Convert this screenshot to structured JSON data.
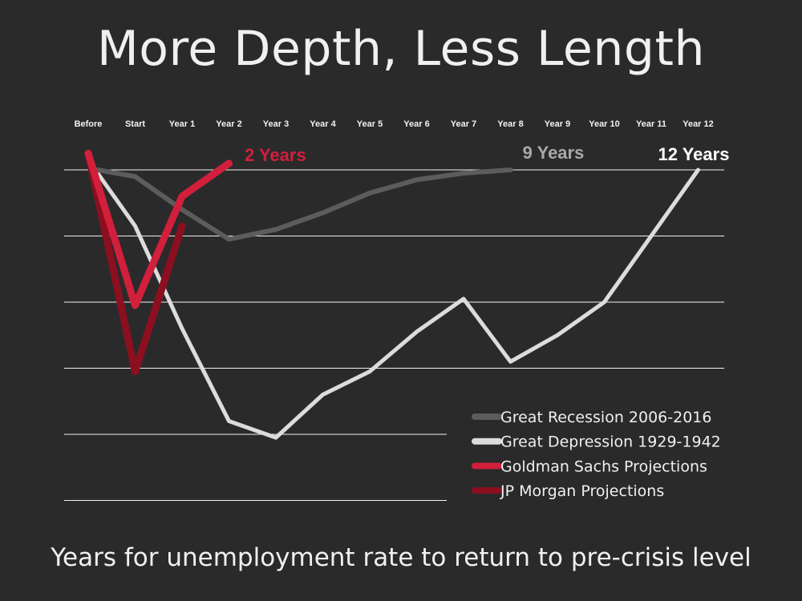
{
  "title": "More Depth, Less Length",
  "caption": "Years for unemployment rate to return to pre-crisis level",
  "chart_data": {
    "type": "line",
    "x_categories": [
      "Before",
      "Start",
      "Year 1",
      "Year 2",
      "Year 3",
      "Year 4",
      "Year 5",
      "Year 6",
      "Year 7",
      "Year 8",
      "Year 9",
      "Year 10",
      "Year 11",
      "Year 12"
    ],
    "ylim": [
      -5,
      0
    ],
    "grid": true,
    "legend_position": "bottom-right",
    "series": [
      {
        "name": "Great Recession 2006-2016",
        "color": "#5c5c5c",
        "points": [
          [
            0.2,
            0
          ],
          [
            1,
            -0.1
          ],
          [
            2,
            -0.6
          ],
          [
            3,
            -1.05
          ],
          [
            4,
            -0.9
          ],
          [
            5,
            -0.65
          ],
          [
            6,
            -0.35
          ],
          [
            7,
            -0.15
          ],
          [
            8,
            -0.05
          ],
          [
            9,
            0
          ]
        ]
      },
      {
        "name": "Great Depression 1929-1942",
        "color": "#dcdcdc",
        "points": [
          [
            0,
            0.15
          ],
          [
            1,
            -0.85
          ],
          [
            2,
            -2.4
          ],
          [
            3,
            -3.8
          ],
          [
            4,
            -4.05
          ],
          [
            5,
            -3.4
          ],
          [
            6,
            -3.05
          ],
          [
            7,
            -2.45
          ],
          [
            8,
            -1.95
          ],
          [
            9,
            -2.9
          ],
          [
            10,
            -2.5
          ],
          [
            11,
            -2.0
          ],
          [
            12,
            -1.0
          ],
          [
            13,
            0
          ]
        ]
      },
      {
        "name": "Goldman Sachs  Projections",
        "color": "#d11f3c",
        "points": [
          [
            0,
            0.25
          ],
          [
            1,
            -2.05
          ],
          [
            2,
            -0.4
          ],
          [
            3,
            0.1
          ]
        ]
      },
      {
        "name": "JP Morgan Projections",
        "color": "#8c0f1f",
        "points": [
          [
            0,
            0.25
          ],
          [
            1,
            -3.05
          ],
          [
            2,
            -0.85
          ]
        ]
      }
    ],
    "annotations": [
      {
        "text": "2 Years",
        "color": "#d11f3c"
      },
      {
        "text": "9 Years",
        "color": "#a8a8a8"
      },
      {
        "text": "12 Years",
        "color": "#ffffff"
      }
    ]
  }
}
